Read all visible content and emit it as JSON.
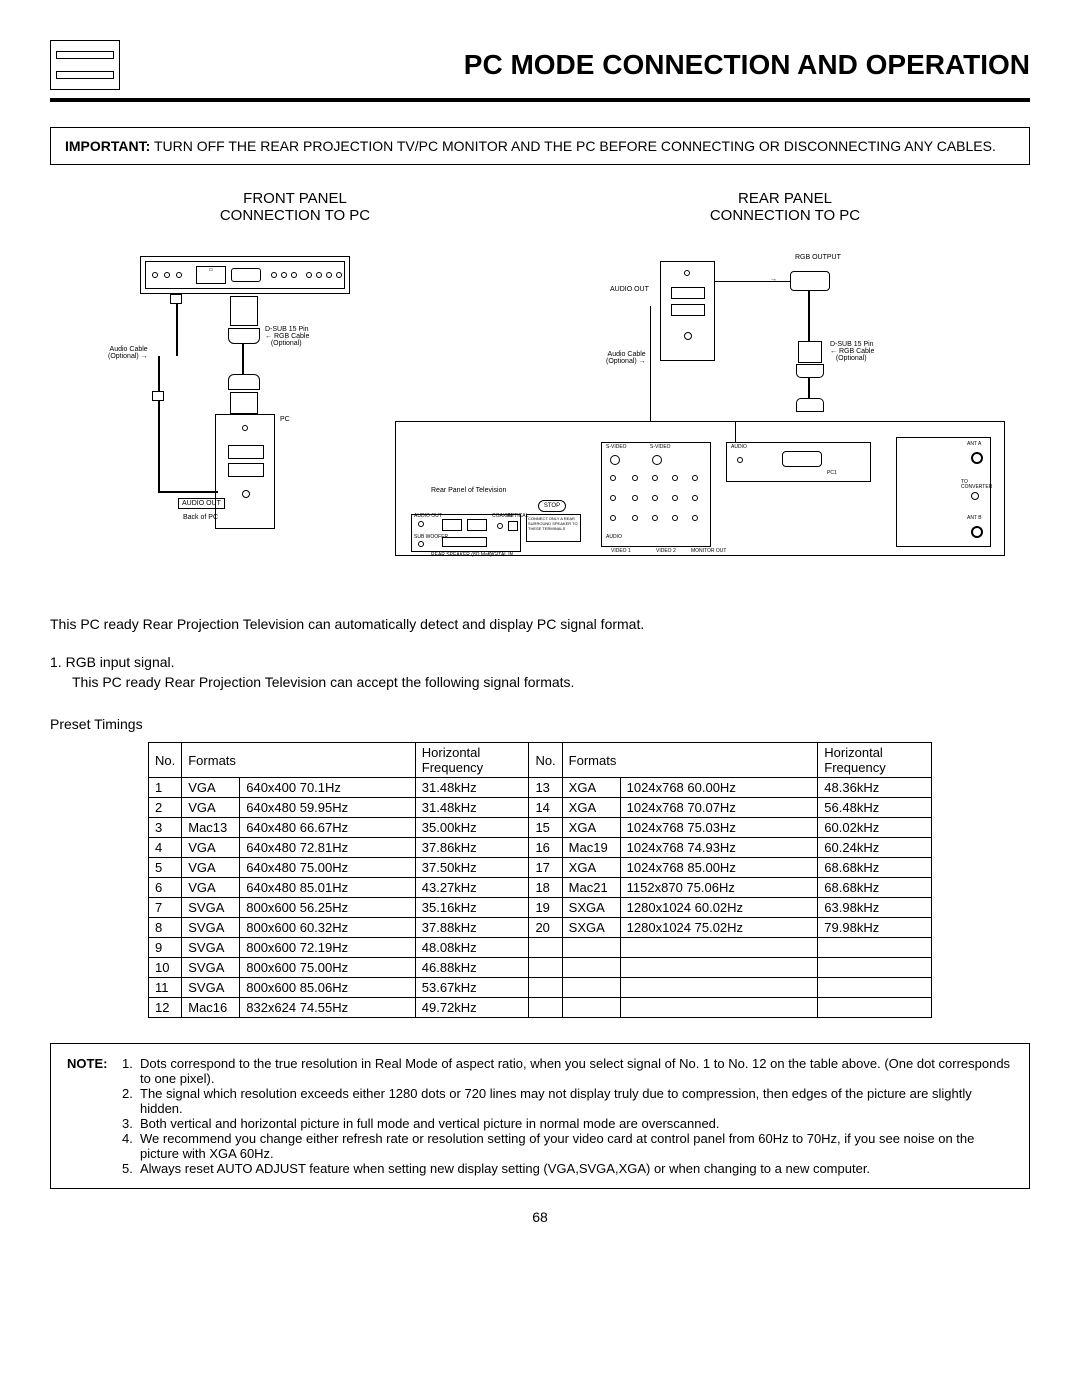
{
  "header": {
    "title": "PC MODE CONNECTION AND OPERATION"
  },
  "important": {
    "label": "IMPORTANT:",
    "text": "TURN OFF THE REAR PROJECTION TV/PC MONITOR AND THE PC BEFORE CONNECTING OR DISCONNECTING ANY CABLES."
  },
  "panels": {
    "left_line1": "FRONT PANEL",
    "left_line2": "CONNECTION TO PC",
    "right_line1": "REAR PANEL",
    "right_line2": "CONNECTION TO PC"
  },
  "diagram_labels": {
    "audio_cable": "Audio Cable",
    "optional": "(Optional)",
    "dsub": "D-SUB 15 Pin",
    "rgb_cable": "RGB Cable",
    "pc": "PC",
    "audio_out": "AUDIO OUT",
    "back_of_pc": "Back of PC",
    "rear_panel_tv": "Rear Panel of Television",
    "rgb_output": "RGB OUTPUT",
    "stop": "STOP",
    "ant_a": "ANT A",
    "ant_b": "ANT B",
    "to_converter": "TO CONVERTER",
    "video1": "VIDEO 1",
    "video2": "VIDEO 2",
    "monitor_out": "MONITOR OUT",
    "svideo": "S-VIDEO",
    "audio": "AUDIO",
    "sub_woofer": "SUB WOOFER",
    "coaxial": "COAXIAL",
    "optical": "OPTICAL",
    "digital_in": "DIGITAL IN",
    "rear_speaker": "REAR SPEAKER (8Ω Max)",
    "pc1": "PC1"
  },
  "body1": "This PC ready Rear Projection Television can automatically detect and display PC signal format.",
  "rgb_item_num": "1.",
  "rgb_item_label": "RGB input signal.",
  "rgb_item_text": "This PC ready Rear Projection Television can accept the following signal formats.",
  "preset_label": "Preset Timings",
  "table": {
    "headers": {
      "no": "No.",
      "formats": "Formats",
      "hfreq_l1": "Horizontal",
      "hfreq_l2": "Frequency"
    },
    "left_rows": [
      {
        "n": "1",
        "f": "VGA",
        "r": "640x400 70.1Hz",
        "h": "31.48kHz"
      },
      {
        "n": "2",
        "f": "VGA",
        "r": "640x480 59.95Hz",
        "h": "31.48kHz"
      },
      {
        "n": "3",
        "f": "Mac13",
        "r": "640x480 66.67Hz",
        "h": "35.00kHz"
      },
      {
        "n": "4",
        "f": "VGA",
        "r": "640x480 72.81Hz",
        "h": "37.86kHz"
      },
      {
        "n": "5",
        "f": "VGA",
        "r": "640x480 75.00Hz",
        "h": "37.50kHz"
      },
      {
        "n": "6",
        "f": "VGA",
        "r": "640x480 85.01Hz",
        "h": "43.27kHz"
      },
      {
        "n": "7",
        "f": "SVGA",
        "r": "800x600 56.25Hz",
        "h": "35.16kHz"
      },
      {
        "n": "8",
        "f": "SVGA",
        "r": "800x600 60.32Hz",
        "h": "37.88kHz"
      },
      {
        "n": "9",
        "f": "SVGA",
        "r": "800x600 72.19Hz",
        "h": "48.08kHz"
      },
      {
        "n": "10",
        "f": "SVGA",
        "r": "800x600 75.00Hz",
        "h": "46.88kHz"
      },
      {
        "n": "11",
        "f": "SVGA",
        "r": "800x600 85.06Hz",
        "h": "53.67kHz"
      },
      {
        "n": "12",
        "f": "Mac16",
        "r": "832x624 74.55Hz",
        "h": "49.72kHz"
      }
    ],
    "right_rows": [
      {
        "n": "13",
        "f": "XGA",
        "r": "1024x768 60.00Hz",
        "h": "48.36kHz"
      },
      {
        "n": "14",
        "f": "XGA",
        "r": "1024x768 70.07Hz",
        "h": "56.48kHz"
      },
      {
        "n": "15",
        "f": "XGA",
        "r": "1024x768 75.03Hz",
        "h": "60.02kHz"
      },
      {
        "n": "16",
        "f": "Mac19",
        "r": "1024x768 74.93Hz",
        "h": "60.24kHz"
      },
      {
        "n": "17",
        "f": "XGA",
        "r": "1024x768 85.00Hz",
        "h": "68.68kHz"
      },
      {
        "n": "18",
        "f": "Mac21",
        "r": "1152x870 75.06Hz",
        "h": "68.68kHz"
      },
      {
        "n": "19",
        "f": "SXGA",
        "r": "1280x1024 60.02Hz",
        "h": "63.98kHz"
      },
      {
        "n": "20",
        "f": "SXGA",
        "r": "1280x1024 75.02Hz",
        "h": "79.98kHz"
      },
      {
        "n": "",
        "f": "",
        "r": "",
        "h": ""
      },
      {
        "n": "",
        "f": "",
        "r": "",
        "h": ""
      },
      {
        "n": "",
        "f": "",
        "r": "",
        "h": ""
      },
      {
        "n": "",
        "f": "",
        "r": "",
        "h": ""
      }
    ]
  },
  "notes": {
    "label": "NOTE:",
    "items": [
      {
        "n": "1.",
        "t": "Dots correspond to the true resolution in Real Mode of aspect ratio, when you select signal of No. 1 to No. 12 on the table above. (One dot corresponds to one pixel)."
      },
      {
        "n": "2.",
        "t": "The signal which resolution exceeds either 1280 dots or 720 lines may not display truly due to compression, then edges of the picture are slightly hidden."
      },
      {
        "n": "3.",
        "t": "Both vertical and horizontal picture in full mode and vertical picture in normal mode are overscanned."
      },
      {
        "n": "4.",
        "t": "We recommend you change either refresh rate or resolution setting of your video card at control panel from 60Hz to 70Hz, if you see noise on the picture with XGA 60Hz."
      },
      {
        "n": "5.",
        "t": "Always reset AUTO ADJUST feature when setting new display setting (VGA,SVGA,XGA) or when changing to a new computer."
      }
    ]
  },
  "page_number": "68"
}
